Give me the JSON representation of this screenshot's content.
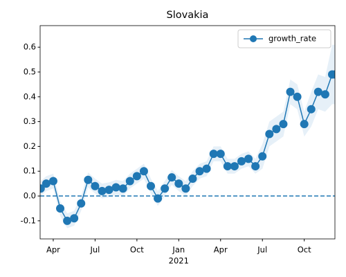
{
  "chart_data": {
    "type": "line",
    "title": "Slovakia",
    "year_label": "2021",
    "x": [
      2.1,
      2.5,
      3.0,
      3.5,
      4.0,
      4.5,
      5.0,
      5.5,
      6.0,
      6.5,
      7.0,
      7.5,
      8.0,
      8.5,
      9.0,
      9.5,
      10.0,
      10.5,
      11.0,
      11.5,
      12.0,
      12.5,
      13.0,
      13.5,
      14.0,
      14.5,
      15.0,
      15.5,
      16.0,
      16.5,
      17.0,
      17.5,
      18.0,
      18.5,
      19.0,
      19.5,
      20.0,
      20.5,
      21.0,
      21.5,
      22.0,
      22.5,
      23.0,
      23.2
    ],
    "series": [
      {
        "name": "growth_rate",
        "color": "#1f77b4",
        "values": [
          0.03,
          0.05,
          0.06,
          -0.05,
          -0.1,
          -0.09,
          -0.03,
          0.065,
          0.04,
          0.02,
          0.025,
          0.035,
          0.03,
          0.06,
          0.08,
          0.1,
          0.04,
          -0.01,
          0.03,
          0.075,
          0.05,
          0.03,
          0.07,
          0.1,
          0.11,
          0.17,
          0.17,
          0.12,
          0.12,
          0.14,
          0.15,
          0.12,
          0.16,
          0.25,
          0.27,
          0.29,
          0.42,
          0.4,
          0.29,
          0.35,
          0.42,
          0.41,
          0.49,
          0.49
        ]
      }
    ],
    "band": {
      "color": "#d6e6f4",
      "upper": [
        0.06,
        0.08,
        0.09,
        -0.02,
        -0.07,
        -0.06,
        0.0,
        0.095,
        0.07,
        0.05,
        0.055,
        0.065,
        0.06,
        0.09,
        0.11,
        0.13,
        0.07,
        0.02,
        0.06,
        0.105,
        0.08,
        0.06,
        0.1,
        0.13,
        0.14,
        0.2,
        0.2,
        0.15,
        0.15,
        0.17,
        0.18,
        0.15,
        0.21,
        0.3,
        0.32,
        0.34,
        0.47,
        0.45,
        0.34,
        0.42,
        0.49,
        0.48,
        0.61,
        0.61
      ],
      "lower": [
        0.0,
        0.02,
        0.03,
        -0.08,
        -0.13,
        -0.12,
        -0.06,
        0.035,
        0.01,
        -0.01,
        -0.005,
        0.005,
        0.0,
        0.03,
        0.05,
        0.07,
        0.01,
        -0.04,
        0.0,
        0.045,
        0.02,
        0.0,
        0.04,
        0.07,
        0.08,
        0.14,
        0.14,
        0.09,
        0.09,
        0.11,
        0.12,
        0.09,
        0.11,
        0.2,
        0.22,
        0.24,
        0.37,
        0.35,
        0.24,
        0.28,
        0.35,
        0.34,
        0.37,
        0.37
      ]
    },
    "hline": 0,
    "xlim": [
      2.06,
      23.2
    ],
    "ylim": [
      -0.173,
      0.687
    ],
    "xticks": [
      {
        "value": 3,
        "label": "Apr"
      },
      {
        "value": 6,
        "label": "Jul"
      },
      {
        "value": 9,
        "label": "Oct"
      },
      {
        "value": 12,
        "label": "Jan"
      },
      {
        "value": 15,
        "label": "Apr"
      },
      {
        "value": 18,
        "label": "Jul"
      },
      {
        "value": 21,
        "label": "Oct"
      }
    ],
    "yticks": [
      -0.1,
      {
        "value": 0,
        "label": "0.0"
      },
      0.1,
      0.2,
      0.3,
      0.4,
      0.5,
      0.6
    ],
    "legend": "upper right"
  }
}
